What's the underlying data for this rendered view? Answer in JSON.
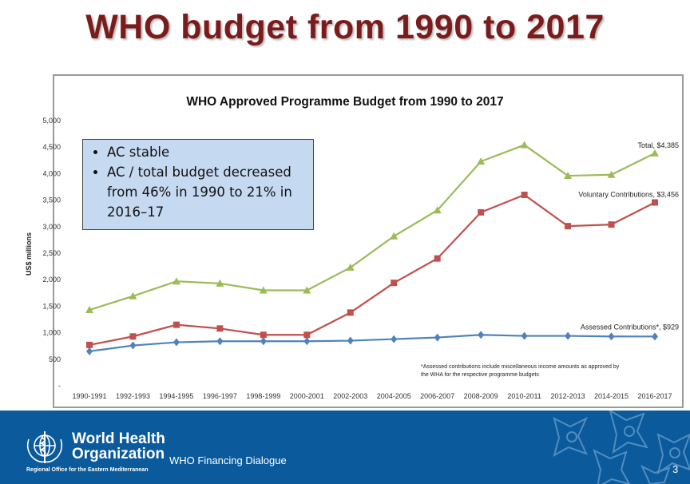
{
  "slide": {
    "title": "WHO budget from 1990 to 2017",
    "footer_text": "WHO Financing Dialogue",
    "page_number": "3",
    "org_name_line1": "World Health",
    "org_name_line2": "Organization",
    "org_subtitle": "Regional Office for the Eastern Mediterranean",
    "footer_color": "#0a5a9c",
    "title_color": "#7a1c1c"
  },
  "callout": {
    "bullets": [
      "AC stable",
      "AC / total budget decreased from 46% in 1990 to 21% in 2016–17"
    ],
    "background": "#c5d9f1"
  },
  "chart_data": {
    "type": "line",
    "title": "WHO Approved Programme Budget from 1990 to 2017",
    "ylabel": "US$ millions",
    "xlabel": "",
    "ylim": [
      0,
      5000
    ],
    "y_ticks": [
      "-",
      "500",
      "1,000",
      "1,500",
      "2,000",
      "2,500",
      "3,000",
      "3,500",
      "4,000",
      "4,500",
      "5,000"
    ],
    "categories": [
      "1990-1991",
      "1992-1993",
      "1994-1995",
      "1996-1997",
      "1998-1999",
      "2000-2001",
      "2002-2003",
      "2004-2005",
      "2006-2007",
      "2008-2009",
      "2010-2011",
      "2012-2013",
      "2014-2015",
      "2016-2017"
    ],
    "series": [
      {
        "name": "Total",
        "end_label": "Total, $4,385",
        "color": "#9bbb59",
        "marker": "triangle",
        "values": [
          1430,
          1690,
          1970,
          1930,
          1800,
          1800,
          2230,
          2820,
          3310,
          4230,
          4540,
          3960,
          3980,
          4385
        ]
      },
      {
        "name": "Voluntary Contributions",
        "end_label": "Voluntary Contributions, $3,456",
        "color": "#c0504d",
        "marker": "square",
        "values": [
          770,
          930,
          1150,
          1080,
          960,
          960,
          1380,
          1940,
          2400,
          3270,
          3600,
          3010,
          3040,
          3456
        ]
      },
      {
        "name": "Assessed Contributions*",
        "end_label": "Assessed Contributions*,  $929",
        "color": "#4f81bd",
        "marker": "diamond",
        "values": [
          650,
          760,
          820,
          840,
          840,
          840,
          850,
          880,
          910,
          960,
          940,
          940,
          930,
          929
        ]
      }
    ],
    "footnote_lines": [
      "*Assessed contributions include miscellaneous income amounts as approved by",
      "the WHA for the respective programme budgets"
    ],
    "grid": false,
    "legend": "end-of-line labels"
  }
}
